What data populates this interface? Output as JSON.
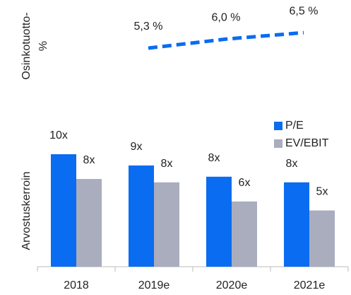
{
  "chart_data": [
    {
      "type": "line",
      "ylabel": [
        "Osinkotuotto-",
        "%"
      ],
      "categories": [
        "2018",
        "2019e",
        "2020e",
        "2021e"
      ],
      "series": [
        {
          "name": "Osinkotuotto",
          "color": "#0a6cf0",
          "values": [
            null,
            5.3,
            6.0,
            6.5
          ],
          "value_labels": [
            null,
            "5,3 %",
            "6,0 %",
            "6,5 %"
          ]
        }
      ],
      "ylim": [
        3,
        7
      ]
    },
    {
      "type": "bar",
      "ylabel": "Arvostuskerroin",
      "categories": [
        "2018",
        "2019e",
        "2020e",
        "2021e"
      ],
      "series": [
        {
          "name": "P/E",
          "color": "#0a6cf0",
          "values": [
            10,
            9,
            8,
            7.5
          ],
          "value_labels": [
            "10x",
            "9x",
            "8x",
            "8x"
          ]
        },
        {
          "name": "EV/EBIT",
          "color": "#a9adbd",
          "values": [
            7.8,
            7.5,
            5.8,
            5.0
          ],
          "value_labels": [
            "8x",
            "8x",
            "6x",
            "5x"
          ]
        }
      ],
      "ylim": [
        0,
        10
      ],
      "legend": "upper-right"
    }
  ]
}
